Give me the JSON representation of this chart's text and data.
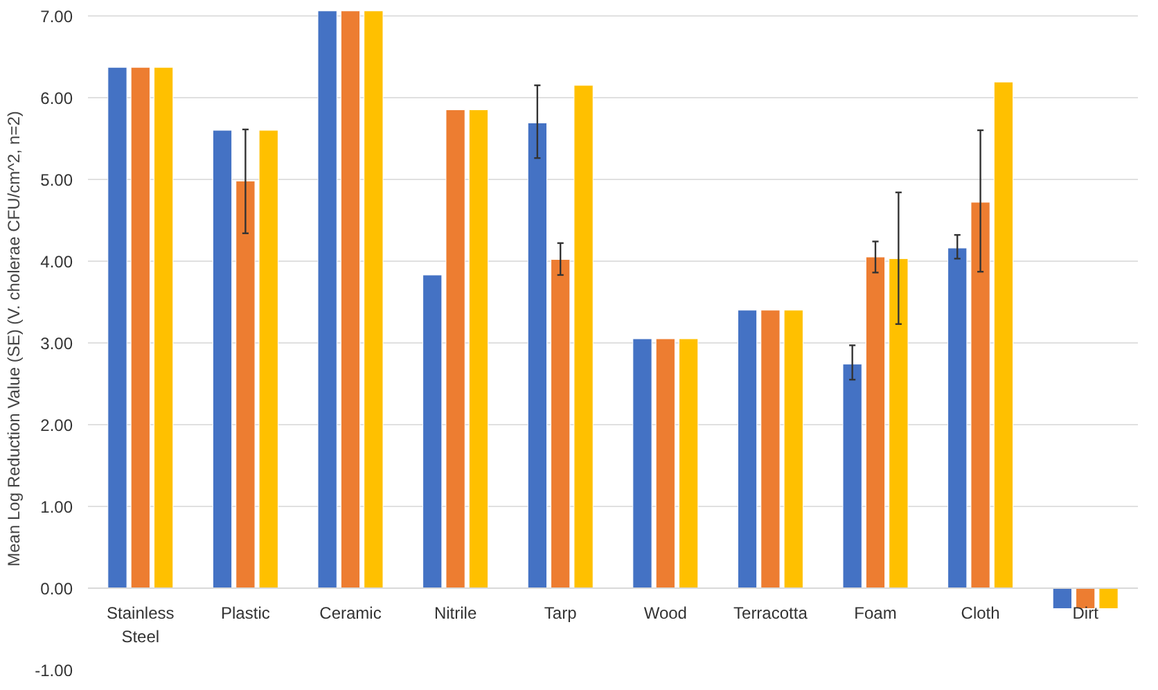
{
  "chart_data": {
    "type": "bar",
    "ylabel": "Mean Log Reduction Value (SE) (V. cholerae CFU/cm^2, n=2)",
    "categories": [
      "Stainless Steel",
      "Plastic",
      "Ceramic",
      "Nitrile",
      "Tarp",
      "Wood",
      "Terracotta",
      "Foam",
      "Cloth",
      "Dirt"
    ],
    "series": [
      {
        "color": "#4472c4",
        "values": [
          6.37,
          5.6,
          7.06,
          3.83,
          5.69,
          3.05,
          3.4,
          2.74,
          4.16,
          -0.25
        ],
        "errors": [
          null,
          null,
          null,
          null,
          [
            5.26,
            6.15
          ],
          null,
          null,
          [
            2.55,
            2.97
          ],
          [
            4.03,
            4.32
          ],
          null
        ]
      },
      {
        "color": "#ed7d31",
        "values": [
          6.37,
          4.98,
          7.06,
          5.85,
          4.02,
          3.05,
          3.4,
          4.05,
          4.72,
          -0.25
        ],
        "errors": [
          null,
          [
            4.34,
            5.61
          ],
          null,
          null,
          [
            3.83,
            4.22
          ],
          null,
          null,
          [
            3.86,
            4.24
          ],
          [
            3.87,
            5.6
          ],
          null
        ]
      },
      {
        "color": "#ffc000",
        "values": [
          6.37,
          5.6,
          7.06,
          5.85,
          6.15,
          3.05,
          3.4,
          4.03,
          6.19,
          -0.25
        ],
        "errors": [
          null,
          null,
          null,
          null,
          null,
          null,
          null,
          [
            3.23,
            4.84
          ],
          null,
          null
        ]
      }
    ],
    "ylim": [
      -1,
      7.1
    ],
    "yticks": [
      {
        "value": -1,
        "label": "-1.00"
      },
      {
        "value": 0,
        "label": "0.00"
      },
      {
        "value": 1,
        "label": "1.00"
      },
      {
        "value": 2,
        "label": "2.00"
      },
      {
        "value": 3,
        "label": "3.00"
      },
      {
        "value": 4,
        "label": "4.00"
      },
      {
        "value": 5,
        "label": "5.00"
      },
      {
        "value": 6,
        "label": "6.00"
      },
      {
        "value": 7,
        "label": "7.00"
      }
    ],
    "grid": "y"
  }
}
